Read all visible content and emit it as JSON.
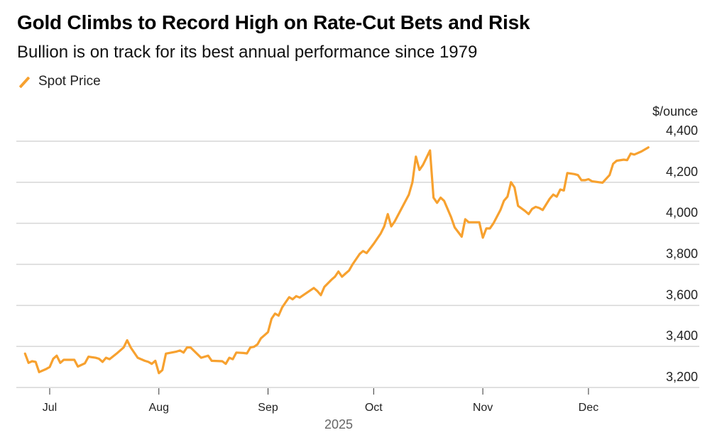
{
  "chart_data": {
    "type": "line",
    "title": "Gold Climbs to Record High on Rate-Cut Bets and Risk",
    "subtitle": "Bullion is on track for its best annual performance since 1979",
    "legend": [
      {
        "name": "Spot Price",
        "color": "#f7a12f"
      }
    ],
    "legend_position": "top-left",
    "ylabel": "$/ounce",
    "ylim": [
      3150,
      4400
    ],
    "yticks": [
      3200,
      3400,
      3600,
      3800,
      4000,
      4200,
      4400
    ],
    "ytick_labels": [
      "3,200",
      "3,400",
      "3,600",
      "3,800",
      "4,000",
      "4,200",
      "4,400"
    ],
    "y_axis_side": "right",
    "grid": true,
    "xlabel": "2025",
    "xticks": [
      {
        "label": "Jul",
        "day": 0
      },
      {
        "label": "Aug",
        "day": 31
      },
      {
        "label": "Sep",
        "day": 62
      },
      {
        "label": "Oct",
        "day": 92
      },
      {
        "label": "Nov",
        "day": 123
      },
      {
        "label": "Dec",
        "day": 153
      }
    ],
    "x_units": "days since 2025-07-01",
    "series": [
      {
        "name": "Spot Price",
        "color": "#f7a12f",
        "points": [
          [
            -7,
            3365
          ],
          [
            -6,
            3320
          ],
          [
            -5,
            3328
          ],
          [
            -4,
            3325
          ],
          [
            -3,
            3275
          ],
          [
            -1,
            3290
          ],
          [
            0,
            3300
          ],
          [
            1,
            3340
          ],
          [
            2,
            3355
          ],
          [
            3,
            3320
          ],
          [
            4,
            3335
          ],
          [
            6,
            3335
          ],
          [
            7,
            3335
          ],
          [
            8,
            3302
          ],
          [
            10,
            3318
          ],
          [
            11,
            3350
          ],
          [
            13,
            3345
          ],
          [
            14,
            3340
          ],
          [
            15,
            3325
          ],
          [
            16,
            3345
          ],
          [
            17,
            3338
          ],
          [
            19,
            3365
          ],
          [
            21,
            3395
          ],
          [
            22,
            3430
          ],
          [
            23,
            3395
          ],
          [
            25,
            3345
          ],
          [
            27,
            3330
          ],
          [
            28,
            3325
          ],
          [
            29,
            3315
          ],
          [
            30,
            3330
          ],
          [
            31,
            3270
          ],
          [
            32,
            3285
          ],
          [
            33,
            3365
          ],
          [
            36,
            3375
          ],
          [
            37,
            3380
          ],
          [
            38,
            3370
          ],
          [
            39,
            3395
          ],
          [
            40,
            3395
          ],
          [
            43,
            3345
          ],
          [
            45,
            3355
          ],
          [
            46,
            3330
          ],
          [
            49,
            3328
          ],
          [
            50,
            3315
          ],
          [
            51,
            3345
          ],
          [
            52,
            3338
          ],
          [
            53,
            3370
          ],
          [
            55,
            3368
          ],
          [
            56,
            3366
          ],
          [
            57,
            3395
          ],
          [
            58,
            3398
          ],
          [
            59,
            3410
          ],
          [
            60,
            3440
          ],
          [
            61,
            3455
          ],
          [
            62,
            3470
          ],
          [
            63,
            3535
          ],
          [
            64,
            3560
          ],
          [
            65,
            3550
          ],
          [
            66,
            3590
          ],
          [
            67,
            3615
          ],
          [
            68,
            3640
          ],
          [
            69,
            3630
          ],
          [
            70,
            3645
          ],
          [
            71,
            3638
          ],
          [
            72,
            3650
          ],
          [
            75,
            3685
          ],
          [
            76,
            3670
          ],
          [
            77,
            3650
          ],
          [
            78,
            3690
          ],
          [
            80,
            3725
          ],
          [
            81,
            3740
          ],
          [
            82,
            3765
          ],
          [
            83,
            3740
          ],
          [
            84,
            3755
          ],
          [
            85,
            3770
          ],
          [
            86,
            3800
          ],
          [
            88,
            3850
          ],
          [
            89,
            3865
          ],
          [
            90,
            3855
          ],
          [
            92,
            3900
          ],
          [
            94,
            3950
          ],
          [
            95,
            3985
          ],
          [
            96,
            4045
          ],
          [
            97,
            3985
          ],
          [
            98,
            4010
          ],
          [
            100,
            4075
          ],
          [
            102,
            4140
          ],
          [
            103,
            4200
          ],
          [
            104,
            4325
          ],
          [
            105,
            4260
          ],
          [
            106,
            4285
          ],
          [
            108,
            4355
          ],
          [
            109,
            4125
          ],
          [
            110,
            4100
          ],
          [
            111,
            4125
          ],
          [
            112,
            4110
          ],
          [
            114,
            4030
          ],
          [
            115,
            3980
          ],
          [
            117,
            3935
          ],
          [
            118,
            4020
          ],
          [
            119,
            4005
          ],
          [
            122,
            4005
          ],
          [
            123,
            3930
          ],
          [
            124,
            3975
          ],
          [
            125,
            3975
          ],
          [
            126,
            4000
          ],
          [
            128,
            4065
          ],
          [
            129,
            4110
          ],
          [
            130,
            4130
          ],
          [
            131,
            4200
          ],
          [
            132,
            4175
          ],
          [
            133,
            4085
          ],
          [
            135,
            4060
          ],
          [
            136,
            4045
          ],
          [
            137,
            4070
          ],
          [
            138,
            4080
          ],
          [
            139,
            4075
          ],
          [
            140,
            4065
          ],
          [
            142,
            4120
          ],
          [
            143,
            4140
          ],
          [
            144,
            4130
          ],
          [
            145,
            4165
          ],
          [
            146,
            4160
          ],
          [
            147,
            4245
          ],
          [
            149,
            4240
          ],
          [
            150,
            4235
          ],
          [
            151,
            4210
          ],
          [
            152,
            4210
          ],
          [
            153,
            4215
          ],
          [
            154,
            4205
          ],
          [
            156,
            4200
          ],
          [
            157,
            4198
          ],
          [
            159,
            4235
          ],
          [
            160,
            4290
          ],
          [
            161,
            4305
          ],
          [
            163,
            4310
          ],
          [
            164,
            4308
          ],
          [
            165,
            4340
          ],
          [
            166,
            4335
          ],
          [
            168,
            4350
          ],
          [
            170,
            4370
          ]
        ]
      }
    ]
  }
}
